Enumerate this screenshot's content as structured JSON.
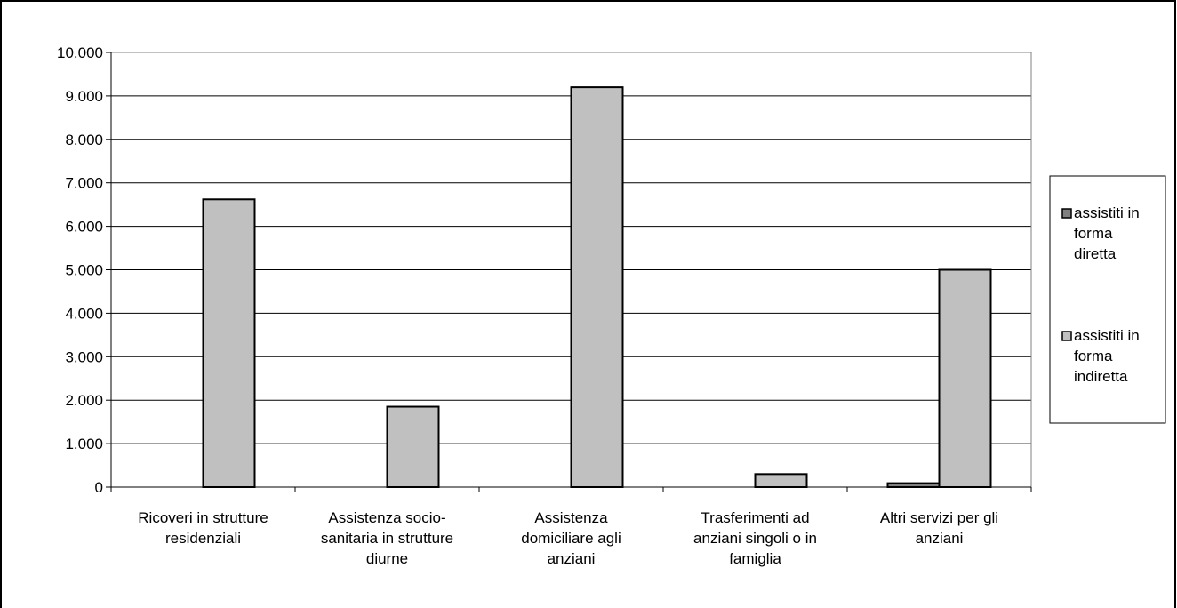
{
  "chart_data": {
    "type": "bar",
    "categories": [
      [
        "Ricoveri in strutture",
        "residenziali"
      ],
      [
        "Assistenza socio-",
        "sanitaria in strutture",
        "diurne"
      ],
      [
        "Assistenza",
        "domiciliare agli",
        "anziani"
      ],
      [
        "Trasferimenti ad",
        "anziani singoli o in",
        "famiglia"
      ],
      [
        "Altri servizi per gli",
        "anziani"
      ]
    ],
    "series": [
      {
        "name": [
          "assistiti in",
          "forma",
          "diretta"
        ],
        "values": [
          0,
          0,
          0,
          0,
          90
        ],
        "color": "#808080"
      },
      {
        "name": [
          "assistiti in",
          "forma",
          "indiretta"
        ],
        "values": [
          6620,
          1850,
          9200,
          300,
          5000
        ],
        "color": "#c0c0c0"
      }
    ],
    "y_ticks": [
      "0",
      "1.000",
      "2.000",
      "3.000",
      "4.000",
      "5.000",
      "6.000",
      "7.000",
      "8.000",
      "9.000",
      "10.000"
    ],
    "ylim": [
      0,
      10000
    ],
    "grid": true,
    "legend_position": "right",
    "title": "",
    "xlabel": "",
    "ylabel": ""
  }
}
